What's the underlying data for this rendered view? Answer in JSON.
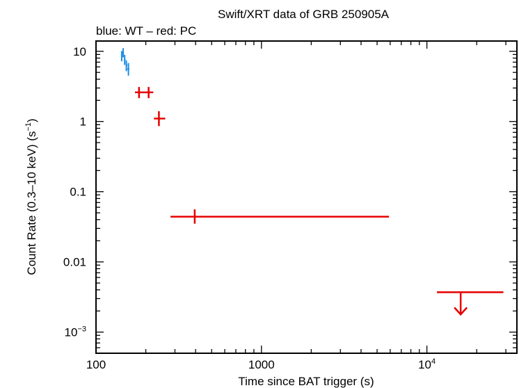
{
  "chart_data": {
    "type": "scatter",
    "title": "Swift/XRT data of GRB 250905A",
    "subtitle": "blue: WT – red: PC",
    "xlabel": "Time since BAT trigger (s)",
    "ylabel_main": "Count Rate (0.3–10 keV) (s",
    "ylabel_sup": "−1",
    "ylabel_end": ")",
    "x_scale": "log",
    "y_scale": "log",
    "xlim": [
      100,
      35000
    ],
    "ylim": [
      0.0005,
      14
    ],
    "x_ticks": [
      {
        "value": 100,
        "label": "100"
      },
      {
        "value": 1000,
        "label": "1000"
      },
      {
        "value": 10000,
        "label": "10",
        "sup": "4"
      }
    ],
    "y_ticks": [
      {
        "value": 10,
        "label": "10"
      },
      {
        "value": 1,
        "label": "1"
      },
      {
        "value": 0.1,
        "label": "0.1"
      },
      {
        "value": 0.01,
        "label": "0.01"
      },
      {
        "value": 0.001,
        "label": "10",
        "sup": "−3"
      }
    ],
    "series": [
      {
        "name": "WT",
        "color": "#1a8ce6",
        "points": [
          {
            "x": 143,
            "xlo": 141.5,
            "xhi": 144.5,
            "y": 8.6,
            "ylo": 7.2,
            "yhi": 10.1
          },
          {
            "x": 146,
            "xlo": 144.5,
            "xhi": 147.5,
            "y": 9.6,
            "ylo": 8.2,
            "yhi": 11.1
          },
          {
            "x": 149,
            "xlo": 147.5,
            "xhi": 151,
            "y": 7.6,
            "ylo": 6.4,
            "yhi": 8.9
          },
          {
            "x": 152.5,
            "xlo": 151,
            "xhi": 154.5,
            "y": 6.3,
            "ylo": 5.2,
            "yhi": 7.4
          },
          {
            "x": 157,
            "xlo": 154.5,
            "xhi": 159,
            "y": 5.6,
            "ylo": 4.5,
            "yhi": 6.8
          }
        ]
      },
      {
        "name": "PC",
        "color": "#e60000",
        "points": [
          {
            "x": 182,
            "xlo": 172,
            "xhi": 196,
            "y": 2.6,
            "ylo": 2.15,
            "yhi": 3.1
          },
          {
            "x": 208,
            "xlo": 196,
            "xhi": 222,
            "y": 2.6,
            "ylo": 2.15,
            "yhi": 3.1
          },
          {
            "x": 240,
            "xlo": 224,
            "xhi": 262,
            "y": 1.1,
            "ylo": 0.86,
            "yhi": 1.4
          },
          {
            "x": 395,
            "xlo": 282,
            "xhi": 5900,
            "y": 0.044,
            "ylo": 0.035,
            "yhi": 0.056
          }
        ],
        "upper_limits": [
          {
            "x": 16000,
            "xlo": 11500,
            "xhi": 29000,
            "y": 0.0037
          }
        ]
      }
    ]
  }
}
